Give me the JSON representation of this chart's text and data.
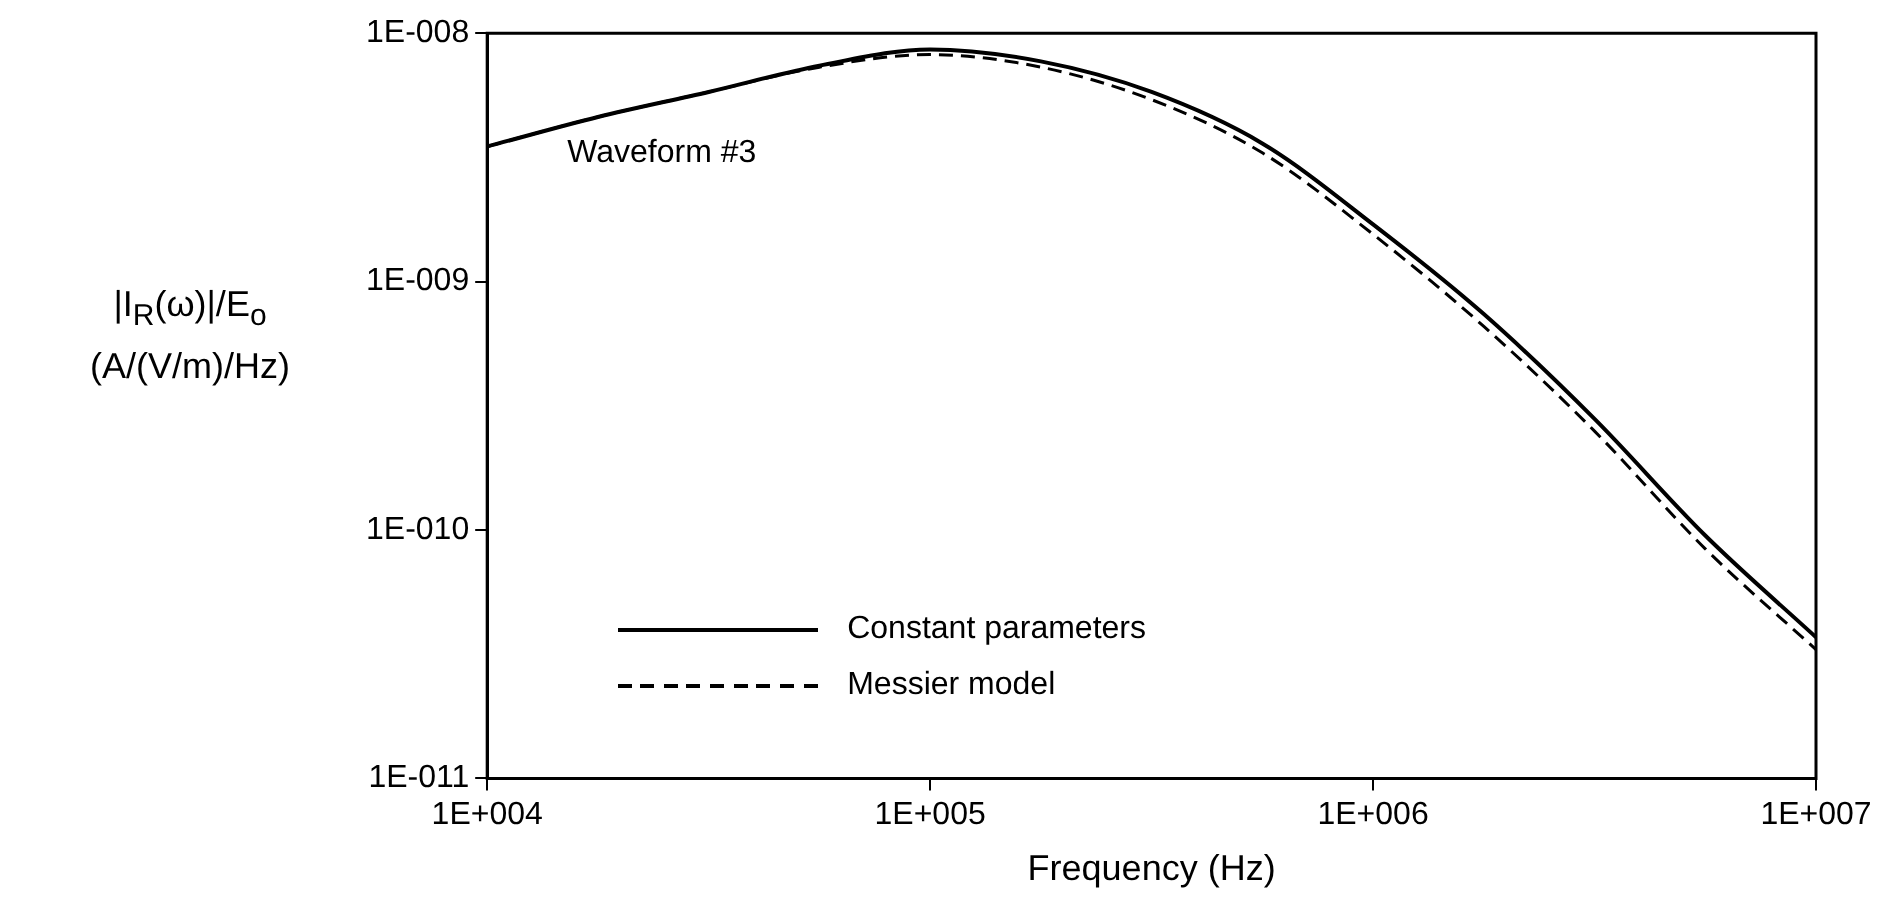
{
  "chart_data": {
    "type": "line",
    "xlabel": "Frequency (Hz)",
    "ylabel": "|I$_{R}$(ω)|/E$_{o}$\n(A/(V/m)/Hz)",
    "annotations": [
      "Waveform #3"
    ],
    "x": [
      10000,
      17783,
      31623,
      56234,
      100000,
      177828,
      316228,
      562341,
      1000000,
      1778279,
      3162278,
      5623413,
      10000000
    ],
    "series": [
      {
        "name": "Constant parameters",
        "color": "#000000",
        "line_style": "solid",
        "values": [
          3.5e-09,
          4.6e-09,
          5.8e-09,
          7.4e-09,
          8.6e-09,
          7.7e-09,
          5.8e-09,
          3.6e-09,
          1.7e-09,
          7.4e-10,
          2.8e-10,
          9.5e-11,
          3.7e-11
        ]
      },
      {
        "name": "Messier model",
        "color": "#000000",
        "line_style": "dashed",
        "values": [
          3.5e-09,
          4.6e-09,
          5.8e-09,
          7.3e-09,
          8.2e-09,
          7.3e-09,
          5.4e-09,
          3.3e-09,
          1.55e-09,
          6.6e-10,
          2.5e-10,
          8.4e-11,
          3.3e-11
        ]
      }
    ],
    "log": "xy",
    "xlim": [
      10000,
      10000000
    ],
    "ylim": [
      1e-11,
      1e-08
    ],
    "xticks": [
      {
        "value": 10000,
        "label": "1E+004"
      },
      {
        "value": 100000,
        "label": "1E+005"
      },
      {
        "value": 1000000,
        "label": "1E+006"
      },
      {
        "value": 10000000,
        "label": "1E+007"
      }
    ],
    "yticks": [
      {
        "value": 1e-11,
        "label": "1E-011"
      },
      {
        "value": 1e-10,
        "label": "1E-010"
      },
      {
        "value": 1e-09,
        "label": "1E-009"
      },
      {
        "value": 1e-08,
        "label": "1E-008"
      }
    ],
    "grid": false,
    "legend": "bottom left",
    "marker": "none"
  }
}
